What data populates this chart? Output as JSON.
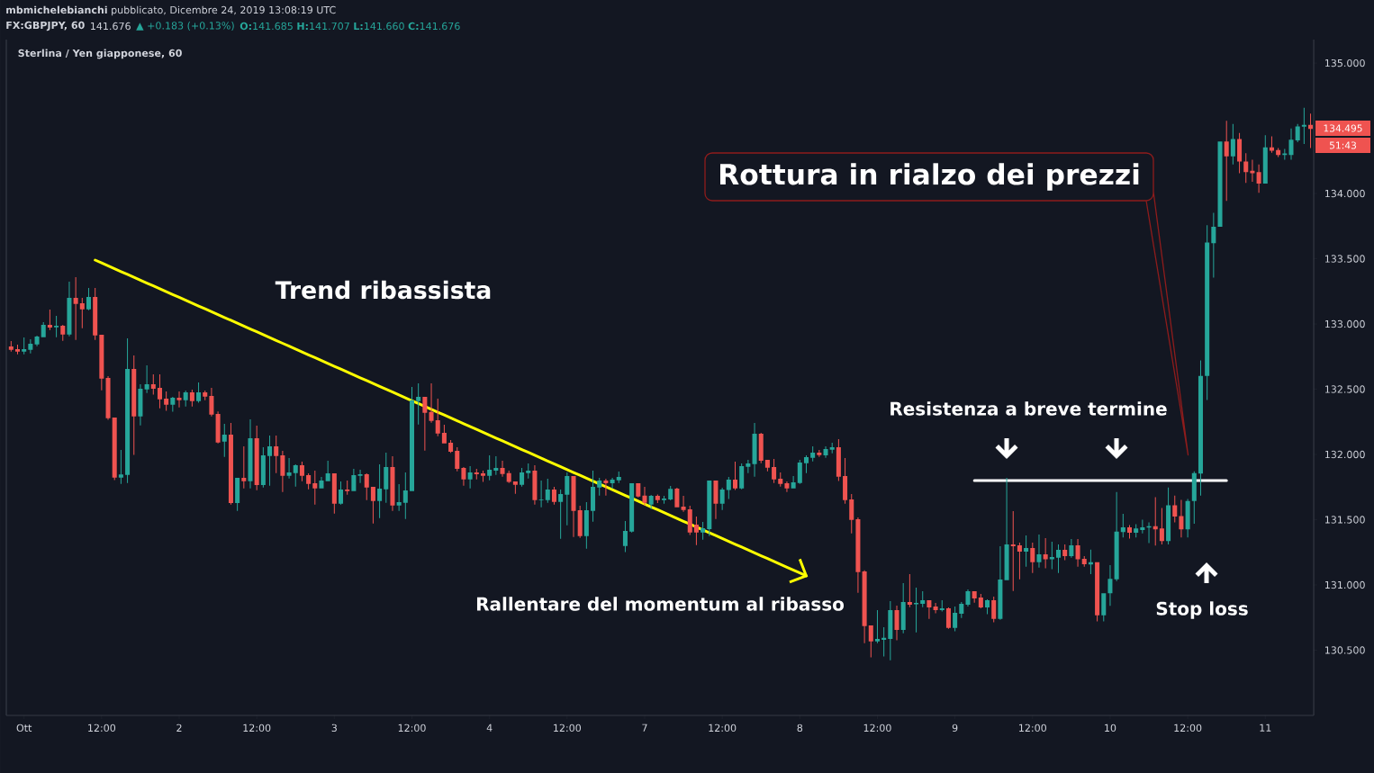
{
  "chart_data": {
    "type": "candlestick",
    "title": "Sterlina / Yen giapponese, 60",
    "categories": [
      null,
      null,
      "Ott",
      null,
      null,
      null,
      null,
      null,
      null,
      null,
      null,
      null,
      null,
      null,
      "12:00",
      null,
      null,
      null,
      null,
      null,
      null,
      null,
      null,
      null,
      null,
      null,
      "2",
      null,
      null,
      null,
      null,
      null,
      null,
      null,
      null,
      null,
      null,
      null,
      "12:00",
      null,
      null,
      null,
      null,
      null,
      null,
      null,
      null,
      null,
      null,
      null,
      "3",
      null,
      null,
      null,
      null,
      null,
      null,
      null,
      null,
      null,
      null,
      null,
      "12:00",
      null,
      null,
      null,
      null,
      null,
      null,
      null,
      null,
      null,
      null,
      null,
      "4",
      null,
      null,
      null,
      null,
      null,
      null,
      null,
      null,
      null,
      null,
      null,
      "12:00",
      null,
      null,
      null,
      null,
      null,
      null,
      null,
      null,
      null,
      null,
      null,
      "7",
      null,
      null,
      null,
      null,
      null,
      null,
      null,
      null,
      null,
      null,
      null,
      "12:00",
      null,
      null,
      null,
      null,
      null,
      null,
      null,
      null,
      null,
      null,
      null,
      "8",
      null,
      null,
      null,
      null,
      null,
      null,
      null,
      null,
      null,
      null,
      null,
      "12:00",
      null,
      null,
      null,
      null,
      null,
      null,
      null,
      null,
      null,
      null,
      null,
      "9",
      null,
      null,
      null,
      null,
      null,
      null,
      null,
      null,
      null,
      null,
      null,
      "12:00",
      null,
      null,
      null,
      null,
      null,
      null,
      null,
      null,
      null,
      null,
      null,
      "10",
      null,
      null,
      null,
      null,
      null,
      null,
      null,
      null,
      null,
      null,
      null,
      "12:00",
      null,
      null,
      null,
      null,
      null,
      null,
      null,
      null,
      null,
      null,
      null,
      "11",
      null,
      null,
      null,
      null,
      null,
      null,
      null
    ],
    "ohlc": [
      [
        132.828,
        132.869,
        132.789,
        132.802
      ],
      [
        132.807,
        132.842,
        132.768,
        132.789
      ],
      [
        132.789,
        132.897,
        132.768,
        132.807
      ],
      [
        132.802,
        132.883,
        132.775,
        132.848
      ],
      [
        132.844,
        132.911,
        132.83,
        132.904
      ],
      [
        132.899,
        133.014,
        132.899,
        132.993
      ],
      [
        132.993,
        133.111,
        132.954,
        132.973
      ],
      [
        132.975,
        133.062,
        132.899,
        132.986
      ],
      [
        132.986,
        132.993,
        132.871,
        132.92
      ],
      [
        132.92,
        133.324,
        132.906,
        133.2
      ],
      [
        133.2,
        133.359,
        132.878,
        133.154
      ],
      [
        133.159,
        133.2,
        132.968,
        133.113
      ],
      [
        133.113,
        133.276,
        133.106,
        133.207
      ],
      [
        133.207,
        133.276,
        132.878,
        132.913
      ],
      [
        132.917,
        132.917,
        132.492,
        132.582
      ],
      [
        132.586,
        132.6,
        132.265,
        132.278
      ],
      [
        132.283,
        132.283,
        131.803,
        131.823
      ],
      [
        131.823,
        132.035,
        131.775,
        131.846
      ],
      [
        131.844,
        132.89,
        131.782,
        132.655
      ],
      [
        132.655,
        132.759,
        131.996,
        132.292
      ],
      [
        132.292,
        132.538,
        132.223,
        132.504
      ],
      [
        132.499,
        132.683,
        132.471,
        132.538
      ],
      [
        132.538,
        132.614,
        132.458,
        132.504
      ],
      [
        132.511,
        132.614,
        132.354,
        132.423
      ],
      [
        132.428,
        132.483,
        132.334,
        132.382
      ],
      [
        132.382,
        132.442,
        132.327,
        132.435
      ],
      [
        132.435,
        132.483,
        132.361,
        132.416
      ],
      [
        132.416,
        132.49,
        132.368,
        132.476
      ],
      [
        132.476,
        132.497,
        132.368,
        132.409
      ],
      [
        132.409,
        132.552,
        132.396,
        132.476
      ],
      [
        132.476,
        132.49,
        132.416,
        132.444
      ],
      [
        132.448,
        132.511,
        132.292,
        132.306
      ],
      [
        132.31,
        132.329,
        132.085,
        132.092
      ],
      [
        132.099,
        132.234,
        131.981,
        132.152
      ],
      [
        132.152,
        132.241,
        131.616,
        131.627
      ],
      [
        131.627,
        131.821,
        131.568,
        131.821
      ],
      [
        131.821,
        132.062,
        131.74,
        131.795
      ],
      [
        131.795,
        132.269,
        131.74,
        132.124
      ],
      [
        132.124,
        132.221,
        131.726,
        131.765
      ],
      [
        131.765,
        132.055,
        131.747,
        131.993
      ],
      [
        131.988,
        132.145,
        131.761,
        132.062
      ],
      [
        132.062,
        132.145,
        131.857,
        131.988
      ],
      [
        131.993,
        132.027,
        131.713,
        131.837
      ],
      [
        131.837,
        131.972,
        131.816,
        131.862
      ],
      [
        131.857,
        131.924,
        131.754,
        131.917
      ],
      [
        131.917,
        131.945,
        131.795,
        131.837
      ],
      [
        131.841,
        131.855,
        131.733,
        131.775
      ],
      [
        131.779,
        131.876,
        131.616,
        131.74
      ],
      [
        131.74,
        131.827,
        131.74,
        131.8
      ],
      [
        131.795,
        131.952,
        131.795,
        131.855
      ],
      [
        131.855,
        131.855,
        131.547,
        131.623
      ],
      [
        131.623,
        131.793,
        131.616,
        131.731
      ],
      [
        131.731,
        131.8,
        131.692,
        131.719
      ],
      [
        131.719,
        131.89,
        131.719,
        131.841
      ],
      [
        131.837,
        131.883,
        131.781,
        131.848
      ],
      [
        131.848,
        131.855,
        131.65,
        131.747
      ],
      [
        131.752,
        131.752,
        131.471,
        131.644
      ],
      [
        131.644,
        131.924,
        131.513,
        131.738
      ],
      [
        131.733,
        132.014,
        131.63,
        131.903
      ],
      [
        131.903,
        131.986,
        131.568,
        131.609
      ],
      [
        131.609,
        131.772,
        131.568,
        131.634
      ],
      [
        131.63,
        131.862,
        131.506,
        131.724
      ],
      [
        131.719,
        132.517,
        131.719,
        132.414
      ],
      [
        132.409,
        132.545,
        132.23,
        132.441
      ],
      [
        132.441,
        132.441,
        132.03,
        132.319
      ],
      [
        132.326,
        132.545,
        132.244,
        132.257
      ],
      [
        132.262,
        132.427,
        132.14,
        132.161
      ],
      [
        132.165,
        132.227,
        132.085,
        132.085
      ],
      [
        132.089,
        132.11,
        132.013,
        132.02
      ],
      [
        132.027,
        132.055,
        131.871,
        131.89
      ],
      [
        131.897,
        131.903,
        131.761,
        131.809
      ],
      [
        131.809,
        131.91,
        131.74,
        131.862
      ],
      [
        131.862,
        131.89,
        131.809,
        131.848
      ],
      [
        131.855,
        131.876,
        131.789,
        131.837
      ],
      [
        131.837,
        131.993,
        131.802,
        131.883
      ],
      [
        131.876,
        131.986,
        131.844,
        131.897
      ],
      [
        131.897,
        131.952,
        131.83,
        131.851
      ],
      [
        131.857,
        131.876,
        131.782,
        131.789
      ],
      [
        131.793,
        131.793,
        131.699,
        131.768
      ],
      [
        131.768,
        131.897,
        131.754,
        131.862
      ],
      [
        131.857,
        131.931,
        131.816,
        131.876
      ],
      [
        131.876,
        131.917,
        131.616,
        131.65
      ],
      [
        131.65,
        131.8,
        131.595,
        131.655
      ],
      [
        131.65,
        131.814,
        131.63,
        131.731
      ],
      [
        131.731,
        131.752,
        131.616,
        131.637
      ],
      [
        131.637,
        131.731,
        131.354,
        131.697
      ],
      [
        131.692,
        131.862,
        131.457,
        131.834
      ],
      [
        131.834,
        131.834,
        131.368,
        131.568
      ],
      [
        131.572,
        131.607,
        131.361,
        131.375
      ],
      [
        131.375,
        131.634,
        131.278,
        131.572
      ],
      [
        131.568,
        131.876,
        131.485,
        131.752
      ],
      [
        131.747,
        131.821,
        131.685,
        131.8
      ],
      [
        131.8,
        131.814,
        131.685,
        131.779
      ],
      [
        131.779,
        131.821,
        131.74,
        131.807
      ],
      [
        131.802,
        131.869,
        131.782,
        131.828
      ],
      [
        131.299,
        131.49,
        131.251,
        131.414
      ],
      [
        131.409,
        131.779,
        131.402,
        131.779
      ],
      [
        131.779,
        131.779,
        131.671,
        131.678
      ],
      [
        131.685,
        131.752,
        131.609,
        131.63
      ],
      [
        131.616,
        131.69,
        131.582,
        131.683
      ],
      [
        131.683,
        131.694,
        131.628,
        131.65
      ],
      [
        131.65,
        131.683,
        131.623,
        131.662
      ],
      [
        131.655,
        131.759,
        131.648,
        131.736
      ],
      [
        131.738,
        131.745,
        131.595,
        131.595
      ],
      [
        131.6,
        131.683,
        131.561,
        131.575
      ],
      [
        131.579,
        131.607,
        131.382,
        131.402
      ],
      [
        131.462,
        131.524,
        131.306,
        131.402
      ],
      [
        131.402,
        131.483,
        131.347,
        131.434
      ],
      [
        131.428,
        131.8,
        131.375,
        131.8
      ],
      [
        131.8,
        131.8,
        131.506,
        131.623
      ],
      [
        131.623,
        131.745,
        131.575,
        131.731
      ],
      [
        131.727,
        131.828,
        131.658,
        131.807
      ],
      [
        131.807,
        131.945,
        131.727,
        131.74
      ],
      [
        131.74,
        131.931,
        131.733,
        131.91
      ],
      [
        131.906,
        131.959,
        131.857,
        131.931
      ],
      [
        131.926,
        132.241,
        131.83,
        132.159
      ],
      [
        132.159,
        132.166,
        131.933,
        131.952
      ],
      [
        131.959,
        131.959,
        131.871,
        131.899
      ],
      [
        131.903,
        131.966,
        131.782,
        131.809
      ],
      [
        131.814,
        131.862,
        131.754,
        131.775
      ],
      [
        131.779,
        131.793,
        131.713,
        131.74
      ],
      [
        131.74,
        131.834,
        131.74,
        131.786
      ],
      [
        131.782,
        131.959,
        131.775,
        131.938
      ],
      [
        131.933,
        131.993,
        131.857,
        131.979
      ],
      [
        131.975,
        132.062,
        131.947,
        132.014
      ],
      [
        132.014,
        132.034,
        131.982,
        131.995
      ],
      [
        131.993,
        132.062,
        131.975,
        132.041
      ],
      [
        132.037,
        132.09,
        132.009,
        132.055
      ],
      [
        132.055,
        132.117,
        131.796,
        131.83
      ],
      [
        131.834,
        131.972,
        131.623,
        131.65
      ],
      [
        131.655,
        131.697,
        131.395,
        131.499
      ],
      [
        131.503,
        131.517,
        130.94,
        131.099
      ],
      [
        131.103,
        131.112,
        130.554,
        130.685
      ],
      [
        130.69,
        130.69,
        130.444,
        130.568
      ],
      [
        130.568,
        130.807,
        130.554,
        130.587
      ],
      [
        130.58,
        130.676,
        130.451,
        130.594
      ],
      [
        130.587,
        130.876,
        130.423,
        130.807
      ],
      [
        130.807,
        130.842,
        130.575,
        130.655
      ],
      [
        130.655,
        131.014,
        130.63,
        130.869
      ],
      [
        130.869,
        131.083,
        130.83,
        130.848
      ],
      [
        130.851,
        130.979,
        130.637,
        130.862
      ],
      [
        130.855,
        130.952,
        130.83,
        130.883
      ],
      [
        130.883,
        130.883,
        130.74,
        130.828
      ],
      [
        130.835,
        130.862,
        130.782,
        130.807
      ],
      [
        130.807,
        130.883,
        130.796,
        130.821
      ],
      [
        130.821,
        130.828,
        130.664,
        130.671
      ],
      [
        130.671,
        130.835,
        130.644,
        130.786
      ],
      [
        130.779,
        130.869,
        130.747,
        130.855
      ],
      [
        130.848,
        130.966,
        130.835,
        130.952
      ],
      [
        130.952,
        130.952,
        130.864,
        130.897
      ],
      [
        130.903,
        130.931,
        130.821,
        130.828
      ],
      [
        130.828,
        130.89,
        130.775,
        130.883
      ],
      [
        130.883,
        130.91,
        130.713,
        130.74
      ],
      [
        130.74,
        131.297,
        130.733,
        131.041
      ],
      [
        131.037,
        131.821,
        131.037,
        131.311
      ],
      [
        131.311,
        131.566,
        130.954,
        131.297
      ],
      [
        131.304,
        131.324,
        131.044,
        131.255
      ],
      [
        131.255,
        131.379,
        131.14,
        131.283
      ],
      [
        131.283,
        131.324,
        131.092,
        131.175
      ],
      [
        131.175,
        131.386,
        131.133,
        131.235
      ],
      [
        131.235,
        131.359,
        131.127,
        131.196
      ],
      [
        131.196,
        131.331,
        131.12,
        131.214
      ],
      [
        131.209,
        131.31,
        131.092,
        131.269
      ],
      [
        131.269,
        131.31,
        131.189,
        131.221
      ],
      [
        131.221,
        131.352,
        131.209,
        131.304
      ],
      [
        131.304,
        131.352,
        131.14,
        131.196
      ],
      [
        131.2,
        131.221,
        131.14,
        131.159
      ],
      [
        131.157,
        131.27,
        131.083,
        131.175
      ],
      [
        131.175,
        131.175,
        130.721,
        130.768
      ],
      [
        130.768,
        130.937,
        130.721,
        130.937
      ],
      [
        130.937,
        131.151,
        130.84,
        131.046
      ],
      [
        131.043,
        131.712,
        131.03,
        131.408
      ],
      [
        131.405,
        131.545,
        131.363,
        131.442
      ],
      [
        131.442,
        131.458,
        131.355,
        131.4
      ],
      [
        131.4,
        131.466,
        131.363,
        131.432
      ],
      [
        131.421,
        131.5,
        131.395,
        131.442
      ],
      [
        131.439,
        131.479,
        131.321,
        131.45
      ],
      [
        131.45,
        131.672,
        131.302,
        131.426
      ],
      [
        131.432,
        131.59,
        131.31,
        131.336
      ],
      [
        131.336,
        131.746,
        131.31,
        131.611
      ],
      [
        131.611,
        131.685,
        131.479,
        131.524
      ],
      [
        131.527,
        131.651,
        131.363,
        131.426
      ],
      [
        131.426,
        131.659,
        131.363,
        131.643
      ],
      [
        131.643,
        131.87,
        131.469,
        131.857
      ],
      [
        131.854,
        132.721,
        131.685,
        132.602
      ],
      [
        132.602,
        133.757,
        132.417,
        133.625
      ],
      [
        133.619,
        133.852,
        133.355,
        133.746
      ],
      [
        133.746,
        134.399,
        133.746,
        134.399
      ],
      [
        134.399,
        134.558,
        133.944,
        134.285
      ],
      [
        134.285,
        134.534,
        134.222,
        134.418
      ],
      [
        134.418,
        134.465,
        134.156,
        134.246
      ],
      [
        134.246,
        134.309,
        134.082,
        134.164
      ],
      [
        134.174,
        134.259,
        134.09,
        134.156
      ],
      [
        134.164,
        134.222,
        134.005,
        134.077
      ],
      [
        134.077,
        134.447,
        134.077,
        134.354
      ],
      [
        134.354,
        134.439,
        134.312,
        134.328
      ],
      [
        134.333,
        134.349,
        134.28,
        134.296
      ],
      [
        134.296,
        134.341,
        134.259,
        134.307
      ],
      [
        134.296,
        134.499,
        134.259,
        134.412
      ],
      [
        134.407,
        134.534,
        134.394,
        134.515
      ],
      [
        134.513,
        134.658,
        134.38,
        134.526
      ],
      [
        134.526,
        134.613,
        134.349,
        134.495
      ]
    ],
    "series": [
      {
        "type": "line",
        "color": "#ffff00",
        "values": [
          null,
          null,
          null,
          null,
          null,
          null,
          null,
          null,
          null,
          null,
          null,
          null,
          null,
          133.49,
          133.468,
          133.446,
          133.424,
          133.402,
          133.38,
          133.358,
          133.336,
          133.314,
          133.292,
          133.27,
          133.248,
          133.226,
          133.204,
          133.182,
          133.16,
          133.138,
          133.116,
          133.094,
          133.072,
          133.05,
          133.028,
          133.006,
          132.984,
          132.962,
          132.94,
          132.918,
          132.896,
          132.874,
          132.852,
          132.83,
          132.808,
          132.786,
          132.764,
          132.742,
          132.72,
          132.698,
          132.676,
          132.654,
          132.632,
          132.61,
          132.588,
          132.566,
          132.544,
          132.522,
          132.5,
          132.478,
          132.456,
          132.434,
          132.412,
          132.39,
          132.368,
          132.346,
          132.324,
          132.302,
          132.28,
          132.258,
          132.236,
          132.214,
          132.192,
          132.17,
          132.148,
          132.126,
          132.104,
          132.082,
          132.06,
          132.038,
          132.016,
          131.994,
          131.972,
          131.95,
          131.928,
          131.906,
          131.884,
          131.862,
          131.84,
          131.818,
          131.796,
          131.774,
          131.752,
          131.73,
          131.708,
          131.686,
          131.664,
          131.642,
          131.62,
          131.598,
          131.576,
          131.554,
          131.532,
          131.51,
          131.488,
          131.466,
          131.444,
          131.422,
          131.4,
          131.378,
          131.356,
          131.334,
          131.312,
          131.29,
          131.268,
          131.246,
          131.224,
          131.202,
          131.18,
          131.158,
          131.136,
          131.114,
          131.092,
          131.07,
          null,
          null,
          null,
          null,
          null,
          null,
          null,
          null,
          null,
          null,
          null,
          null,
          null,
          null,
          null,
          null,
          null,
          null,
          null,
          null,
          null,
          null,
          null,
          null,
          null,
          null,
          null,
          null,
          null,
          null,
          null,
          null,
          null,
          null,
          null,
          null,
          null,
          null,
          null,
          null,
          null,
          null,
          null,
          null,
          null,
          null,
          null,
          null,
          null,
          null,
          null,
          null,
          null,
          null,
          null,
          null,
          null,
          null,
          null,
          null,
          null,
          null,
          null,
          null,
          null,
          null,
          null,
          null,
          null,
          null,
          null,
          null,
          null,
          null,
          null,
          null,
          null,
          null
        ]
      },
      {
        "type": "line",
        "color": "#ffffff",
        "values": [
          null,
          null,
          null,
          null,
          null,
          null,
          null,
          null,
          null,
          null,
          null,
          null,
          null,
          null,
          null,
          null,
          null,
          null,
          null,
          null,
          null,
          null,
          null,
          null,
          null,
          null,
          null,
          null,
          null,
          null,
          null,
          null,
          null,
          null,
          null,
          null,
          null,
          null,
          null,
          null,
          null,
          null,
          null,
          null,
          null,
          null,
          null,
          null,
          null,
          null,
          null,
          null,
          null,
          null,
          null,
          null,
          null,
          null,
          null,
          null,
          null,
          null,
          null,
          null,
          null,
          null,
          null,
          null,
          null,
          null,
          null,
          null,
          null,
          null,
          null,
          null,
          null,
          null,
          null,
          null,
          null,
          null,
          null,
          null,
          null,
          null,
          null,
          null,
          null,
          null,
          null,
          null,
          null,
          null,
          null,
          null,
          null,
          null,
          null,
          null,
          null,
          null,
          null,
          null,
          null,
          null,
          null,
          null,
          null,
          null,
          null,
          null,
          null,
          null,
          null,
          null,
          null,
          null,
          null,
          null,
          null,
          null,
          null,
          null,
          null,
          null,
          null,
          null,
          null,
          null,
          null,
          null,
          null,
          null,
          null,
          null,
          null,
          null,
          null,
          null,
          null,
          null,
          null,
          null,
          null,
          null,
          null,
          null,
          null,
          131.8,
          131.8,
          131.8,
          131.8,
          131.8,
          131.8,
          131.8,
          131.8,
          131.8,
          131.8,
          131.8,
          131.8,
          131.8,
          131.8,
          131.8,
          131.8,
          131.8,
          131.8,
          131.8,
          131.8,
          131.8,
          131.8,
          131.8,
          131.8,
          131.8,
          131.8,
          131.8,
          131.8,
          131.8,
          131.8,
          131.8,
          131.8,
          131.8,
          131.8,
          131.8,
          131.8,
          131.8,
          131.8,
          131.8,
          131.8,
          null,
          null,
          null,
          null,
          null,
          null,
          null,
          null,
          null,
          null,
          null,
          null,
          null
        ]
      }
    ],
    "ylim": [
      130.0,
      135.18
    ],
    "yticks": [
      {
        "value": 130.5,
        "label": "130.500"
      },
      {
        "value": 131.0,
        "label": "131.000"
      },
      {
        "value": 131.5,
        "label": "131.500"
      },
      {
        "value": 132.0,
        "label": "132.000"
      },
      {
        "value": 132.5,
        "label": "132.500"
      },
      {
        "value": 133.0,
        "label": "133.000"
      },
      {
        "value": 133.5,
        "label": "133.500"
      },
      {
        "value": 134.0,
        "label": "134.000"
      },
      {
        "value": 135.0,
        "label": "135.000"
      }
    ],
    "annotations": [
      "**mbmichelebianchi** pubblicato, Dicembre 24, 2019 13:08:19 UTC",
      "FX:GBPJPY, 60",
      "141.676",
      "▲ +0.183 (+0.13%)",
      "**O:**141.685 **H:**141.707 **L:**141.660 **C:**141.676",
      "Trend ribassista",
      "Rottura in rialzo dei prezzi",
      "Resistenza a breve termine",
      "Rallentare del momentum al ribasso",
      "Stop loss",
      "134.495",
      "51:43"
    ]
  }
}
